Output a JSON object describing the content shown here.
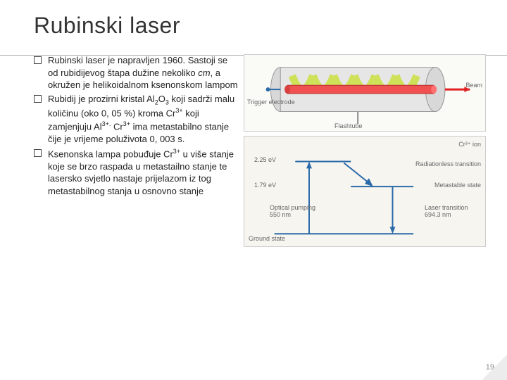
{
  "title": "Rubinski laser",
  "bullets": [
    "Rubinski laser je napravljen 1960. Sastoji se od rubidijevog štapa dužine nekoliko <em>cm</em>, a okružen je helikoidalnom ksenonskom lampom",
    "Rubidij je prozirni kristal Al<sub>2</sub>O<sub>3</sub> koji sadrži malu količinu (oko 0, 05 %) kroma Cr<sup>3+</sup> koji zamjenjuju Al<sup>3+.</sup> Cr<sup>3+</sup> ima metastabilno stanje čije je vrijeme poluživota 0, 003 s.",
    "Ksenonska lampa pobuđuje Cr<sup>3+</sup> u više stanje koje se brzo raspada u metastailno stanje te lasersko svjetlo nastaje prijelazom iz tog metastabilnog stanja u osnovno stanje"
  ],
  "fig1": {
    "labels": {
      "trigger": "Trigger electrode",
      "beam": "Beam",
      "flash": "Flashtube"
    },
    "colors": {
      "tube_outer": "#d8d8d8",
      "tube_inner": "#cfcfcf",
      "ruby": "#f05050",
      "coil": "#d4e85a",
      "beam": "#e02020",
      "electrode": "#2a6aa8"
    }
  },
  "fig2": {
    "labels": {
      "ion": "Cr³⁺ ion",
      "e_upper": "2.25 eV",
      "e_meta": "1.79 eV",
      "radless": "Radiationless transition",
      "metastable": "Metastable state",
      "pump": "Optical pumping 550 nm",
      "laser": "Laser transition 694.3 nm",
      "ground": "Ground state"
    },
    "colors": {
      "level": "#2a6aa8",
      "arrow": "#2a6aa8",
      "text": "#4a4a4a",
      "bg": "#f7f5f0"
    }
  },
  "page_number": "19"
}
